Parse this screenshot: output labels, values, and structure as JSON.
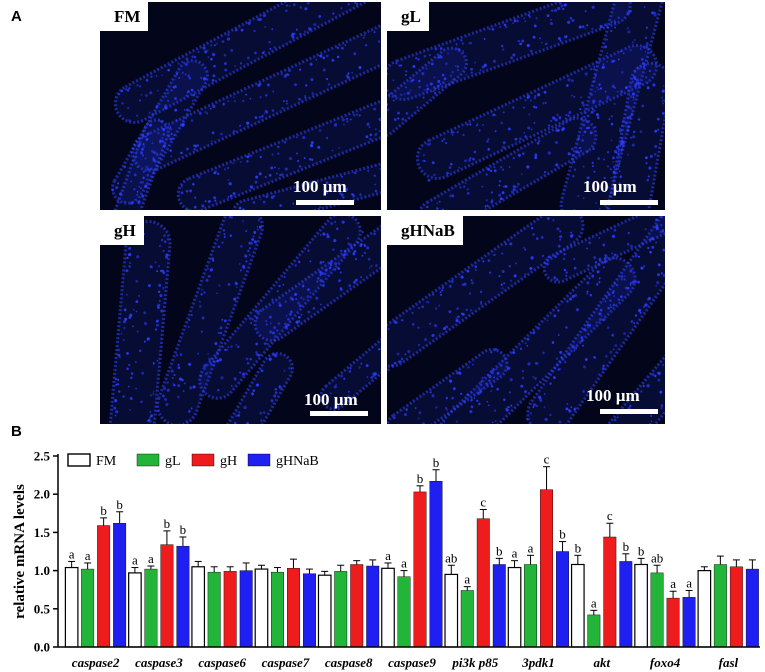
{
  "panel_a": {
    "letter": "A",
    "images": [
      {
        "label": "FM",
        "scale": "100 µm"
      },
      {
        "label": "gL",
        "scale": "100 µm"
      },
      {
        "label": "gH",
        "scale": "100 µm"
      },
      {
        "label": "gHNaB",
        "scale": "100 µm"
      }
    ]
  },
  "panel_b": {
    "letter": "B"
  },
  "colors": {
    "FM": "#ffffff",
    "gL": "#22b53a",
    "gH": "#ee1c1c",
    "gHNaB": "#1f1ff2",
    "micro_bg": "#03061a",
    "nuclei": "#2b3cff"
  },
  "chart_data": {
    "type": "bar",
    "ylabel": "relative mRNA levels",
    "ylim": [
      0,
      2.5
    ],
    "yticks": [
      "0.0",
      "0.5",
      "1.0",
      "1.5",
      "2.0",
      "2.5"
    ],
    "legend_position": "top-left",
    "categories": [
      "caspase2",
      "caspase3",
      "caspase6",
      "caspase7",
      "caspase8",
      "caspase9",
      "pi3k p85",
      "3pdk1",
      "akt",
      "foxo4",
      "fasl"
    ],
    "series": [
      {
        "name": "FM",
        "color": "#ffffff",
        "values": [
          1.04,
          0.97,
          1.05,
          1.02,
          0.94,
          1.03,
          0.95,
          1.04,
          1.08,
          1.08,
          1.0
        ],
        "errors": [
          0.08,
          0.07,
          0.07,
          0.05,
          0.05,
          0.07,
          0.12,
          0.09,
          0.12,
          0.08,
          0.05
        ],
        "letters": [
          "a",
          "a",
          "",
          "",
          "",
          "a",
          "ab",
          "a",
          "b",
          "b",
          ""
        ]
      },
      {
        "name": "gL",
        "color": "#22b53a",
        "values": [
          1.02,
          1.02,
          0.98,
          0.98,
          0.99,
          0.92,
          0.74,
          1.08,
          0.42,
          0.97,
          1.08
        ],
        "errors": [
          0.08,
          0.04,
          0.07,
          0.06,
          0.08,
          0.08,
          0.05,
          0.12,
          0.06,
          0.1,
          0.11
        ],
        "letters": [
          "a",
          "a",
          "",
          "",
          "",
          "a",
          "a",
          "a",
          "a",
          "ab",
          ""
        ]
      },
      {
        "name": "gH",
        "color": "#ee1c1c",
        "values": [
          1.59,
          1.34,
          0.99,
          1.03,
          1.08,
          2.03,
          1.68,
          2.06,
          1.44,
          0.64,
          1.05
        ],
        "errors": [
          0.1,
          0.18,
          0.06,
          0.12,
          0.05,
          0.08,
          0.12,
          0.3,
          0.18,
          0.09,
          0.09
        ],
        "letters": [
          "b",
          "b",
          "",
          "",
          "",
          "b",
          "c",
          "c",
          "c",
          "a",
          ""
        ]
      },
      {
        "name": "gHNaB",
        "color": "#1f1ff2",
        "values": [
          1.62,
          1.32,
          1.0,
          0.96,
          1.06,
          2.17,
          1.08,
          1.25,
          1.12,
          0.65,
          1.02
        ],
        "errors": [
          0.15,
          0.12,
          0.1,
          0.06,
          0.08,
          0.15,
          0.08,
          0.13,
          0.1,
          0.09,
          0.12
        ],
        "letters": [
          "b",
          "b",
          "",
          "",
          "",
          "b",
          "b",
          "b",
          "b",
          "a",
          ""
        ]
      }
    ]
  }
}
